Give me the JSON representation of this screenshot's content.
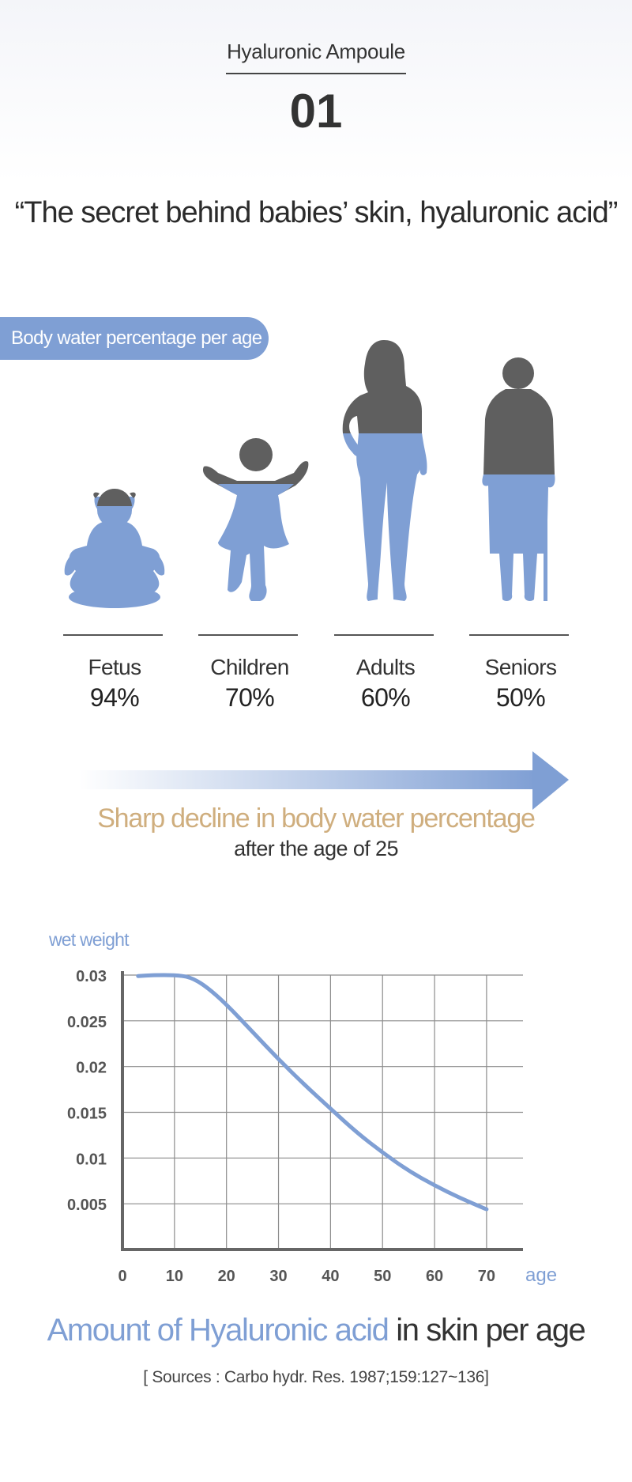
{
  "header": {
    "subtitle": "Hyaluronic Ampoule",
    "number": "01",
    "quote": "“The secret behind babies’ skin, hyaluronic acid”"
  },
  "body_water": {
    "label": "Body water percentage per age",
    "categories": [
      {
        "name": "Fetus",
        "value_label": "94%",
        "value": 94,
        "icon": "fetus-silhouette-icon"
      },
      {
        "name": "Children",
        "value_label": "70%",
        "value": 70,
        "icon": "child-silhouette-icon"
      },
      {
        "name": "Adults",
        "value_label": "60%",
        "value": 60,
        "icon": "adult-silhouette-icon"
      },
      {
        "name": "Seniors",
        "value_label": "50%",
        "value": 50,
        "icon": "senior-silhouette-icon"
      }
    ],
    "decline_text": "Sharp decline in body water percentage",
    "decline_sub": "after the age of 25"
  },
  "colors": {
    "accent_blue": "#7f9fd4",
    "silhouette_gray": "#5f5f5f",
    "gold": "#cfae7e",
    "grid": "#8c8c8c"
  },
  "chart_data": {
    "type": "line",
    "ylabel": "wet weight",
    "xlabel": "age",
    "x_ticks": [
      0,
      10,
      20,
      30,
      40,
      50,
      60,
      70
    ],
    "y_ticks": [
      0.005,
      0.01,
      0.015,
      0.02,
      0.025,
      0.03
    ],
    "y_tick_labels": [
      "0.005",
      "0.01",
      "0.015",
      "0.02",
      "0.025",
      "0.03"
    ],
    "xlim": [
      0,
      77
    ],
    "ylim": [
      0,
      0.03
    ],
    "grid": true,
    "series": [
      {
        "x": [
          3,
          6,
          10,
          13,
          16,
          20,
          25,
          30,
          35,
          40,
          45,
          50,
          55,
          60,
          65,
          70
        ],
        "y": [
          0.0299,
          0.03,
          0.03,
          0.0298,
          0.0288,
          0.0268,
          0.0238,
          0.0208,
          0.018,
          0.0154,
          0.0128,
          0.0106,
          0.0086,
          0.007,
          0.0056,
          0.0044
        ]
      }
    ]
  },
  "chart_title": {
    "highlight": "Amount of Hyaluronic acid",
    "rest": " in skin per age"
  },
  "source": "[ Sources : Carbo hydr. Res. 1987;159:127~136]"
}
